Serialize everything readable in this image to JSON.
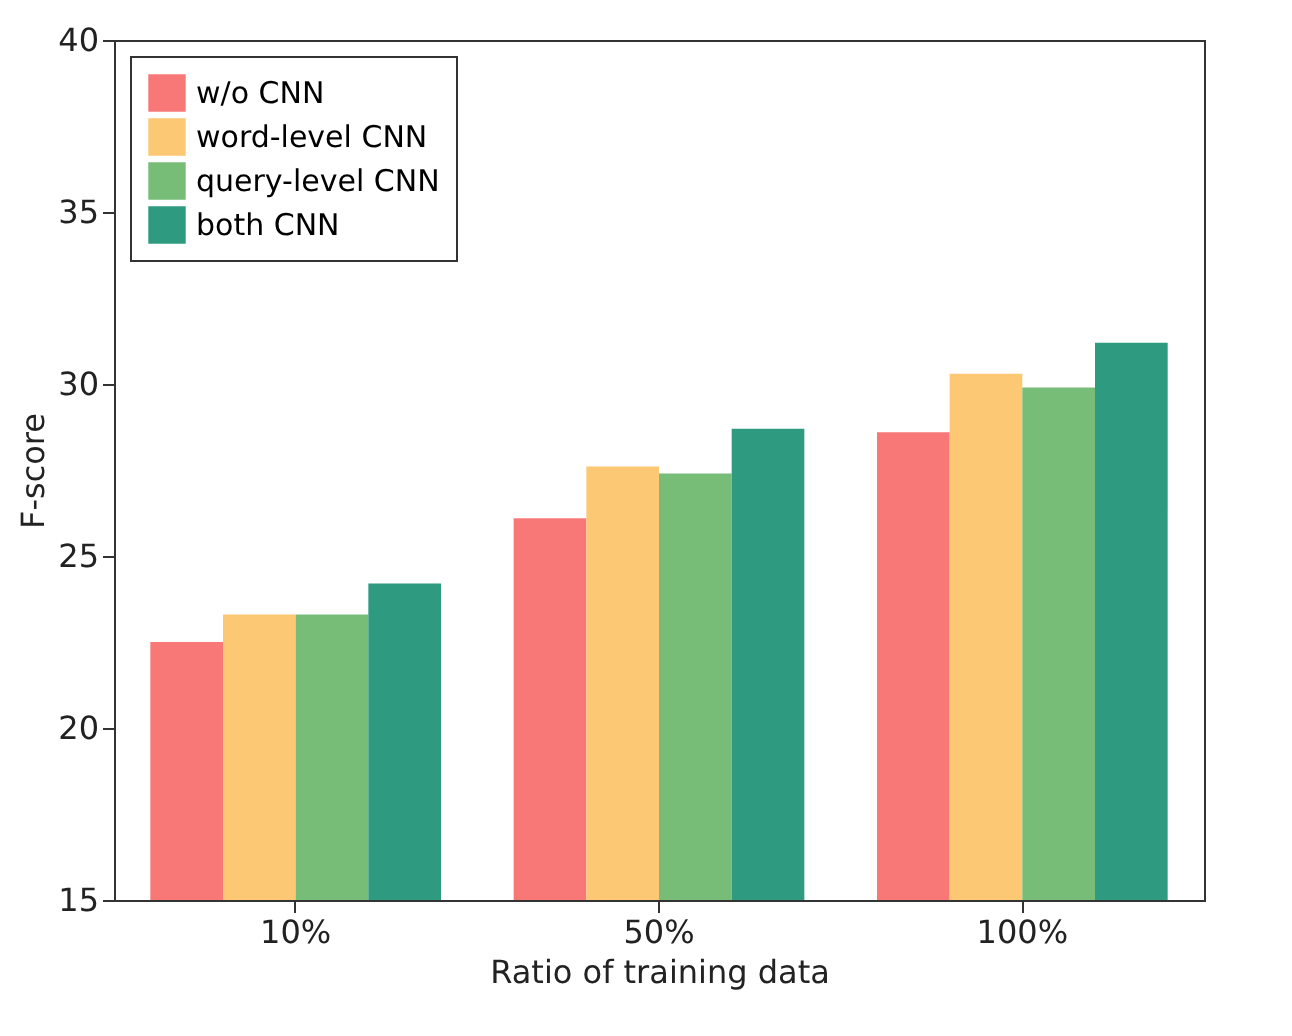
{
  "chart_data": {
    "type": "bar",
    "xlabel": "Ratio of training data",
    "ylabel": "F-score",
    "categories": [
      "10%",
      "50%",
      "100%"
    ],
    "series": [
      {
        "name": "w/o CNN",
        "color": "#f87878",
        "values": [
          22.5,
          26.1,
          28.6
        ]
      },
      {
        "name": "word-level CNN",
        "color": "#fdc874",
        "values": [
          23.3,
          27.6,
          30.3
        ]
      },
      {
        "name": "query-level CNN",
        "color": "#77bd78",
        "values": [
          23.3,
          27.4,
          29.9
        ]
      },
      {
        "name": "both CNN",
        "color": "#2e9a80",
        "values": [
          24.2,
          28.7,
          31.2
        ]
      }
    ],
    "ylim": [
      15,
      40
    ],
    "yticks": [
      15,
      20,
      25,
      30,
      35,
      40
    ],
    "grid": false,
    "legend": "top left"
  }
}
